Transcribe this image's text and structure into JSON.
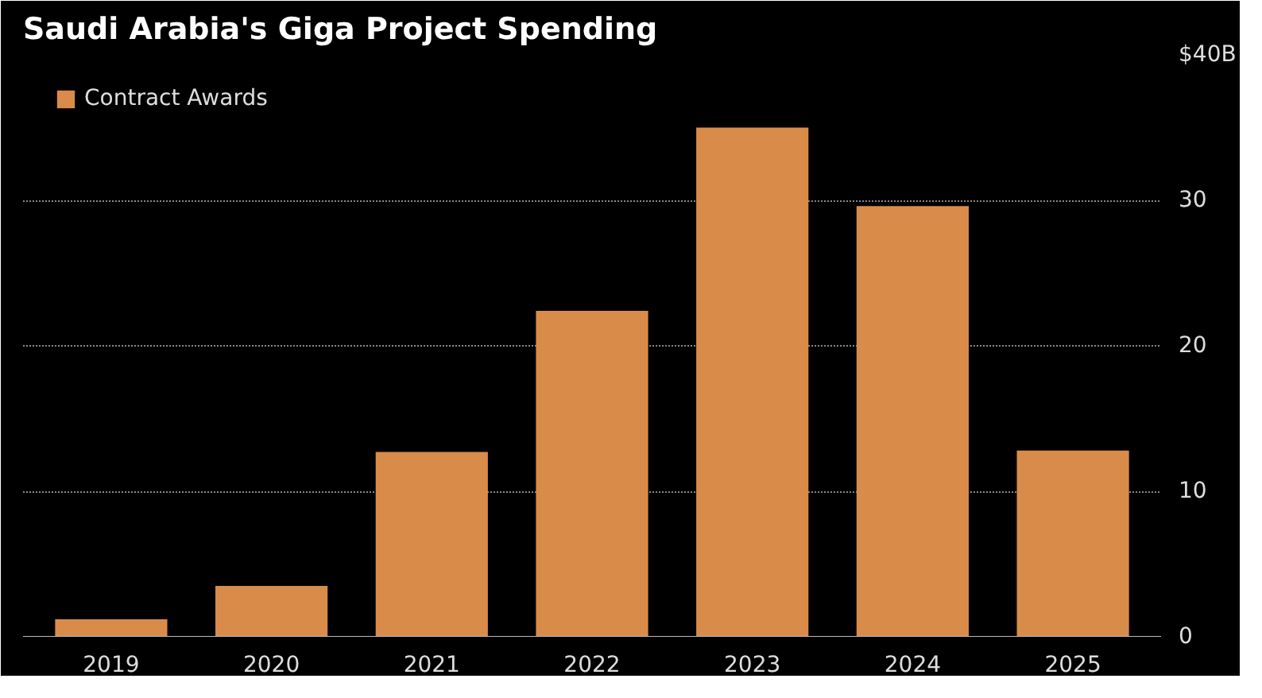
{
  "chart_data": {
    "type": "bar",
    "title": "Saudi Arabia's Giga Project Spending",
    "categories": [
      "2019",
      "2020",
      "2021",
      "2022",
      "2023",
      "2024",
      "2025"
    ],
    "series": [
      {
        "name": "Contract Awards",
        "color": "#d98c4a",
        "values": [
          1.2,
          3.5,
          12.7,
          22.4,
          35.0,
          29.6,
          12.8
        ]
      }
    ],
    "ylim": [
      0,
      40
    ],
    "yticks": [
      0,
      10,
      20,
      30,
      {
        "value": 40,
        "label": "$40B"
      }
    ],
    "grid": "y",
    "legend": "top left"
  }
}
